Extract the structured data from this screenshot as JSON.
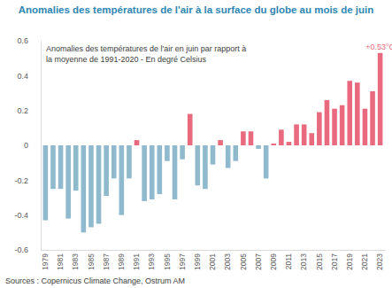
{
  "chart_data": {
    "type": "bar",
    "title": "Anomalies des températures de l'air à la surface du globe au mois de juin",
    "subtitle": [
      "Anomalies des températures de l'air en juin par rapport à",
      "la moyenne de 1991-2020 - En degré Celsius"
    ],
    "source": "Sources : Copernicus Climate Change, Ostrum AM",
    "annotation": "+0.53°C",
    "categories": [
      "1979",
      null,
      "1981",
      null,
      "1983",
      null,
      "1985",
      null,
      "1987",
      null,
      "1989",
      null,
      "1991",
      null,
      "1993",
      null,
      "1995",
      null,
      "1997",
      null,
      "1999",
      null,
      "2001",
      null,
      "2003",
      null,
      "2005",
      null,
      "2007",
      null,
      "2009",
      null,
      "2011",
      null,
      "2013",
      null,
      "2015",
      null,
      "2017",
      null,
      "2019",
      null,
      "2021",
      null,
      "2023"
    ],
    "values": [
      -0.43,
      -0.25,
      -0.25,
      -0.42,
      -0.26,
      -0.5,
      -0.47,
      -0.45,
      -0.29,
      -0.19,
      -0.4,
      -0.19,
      0.03,
      -0.32,
      -0.31,
      -0.28,
      -0.09,
      -0.31,
      -0.08,
      0.18,
      -0.23,
      -0.25,
      -0.11,
      0.03,
      -0.13,
      -0.09,
      0.08,
      0.08,
      -0.02,
      -0.19,
      0.01,
      0.09,
      0.02,
      0.12,
      0.12,
      0.07,
      0.19,
      0.26,
      0.21,
      0.23,
      0.37,
      0.36,
      0.21,
      0.31,
      0.53
    ],
    "colors": [
      "#8fb9cc",
      "#8fb9cc",
      "#8fb9cc",
      "#8fb9cc",
      "#8fb9cc",
      "#8fb9cc",
      "#8fb9cc",
      "#8fb9cc",
      "#8fb9cc",
      "#8fb9cc",
      "#8fb9cc",
      "#8fb9cc",
      "#e96a7e",
      "#8fb9cc",
      "#8fb9cc",
      "#8fb9cc",
      "#8fb9cc",
      "#8fb9cc",
      "#8fb9cc",
      "#e96a7e",
      "#8fb9cc",
      "#8fb9cc",
      "#8fb9cc",
      "#e96a7e",
      "#8fb9cc",
      "#8fb9cc",
      "#e96a7e",
      "#e96a7e",
      "#8fb9cc",
      "#8fb9cc",
      "#e96a7e",
      "#e96a7e",
      "#e96a7e",
      "#e96a7e",
      "#e96a7e",
      "#e96a7e",
      "#e96a7e",
      "#e96a7e",
      "#e96a7e",
      "#e96a7e",
      "#e96a7e",
      "#e96a7e",
      "#e96a7e",
      "#e96a7e",
      "#e96a7e"
    ],
    "ylim": [
      -0.6,
      0.6
    ],
    "yticks": [
      -0.6,
      -0.4,
      -0.2,
      0,
      0.2,
      0.4,
      0.6
    ],
    "grid": false
  }
}
